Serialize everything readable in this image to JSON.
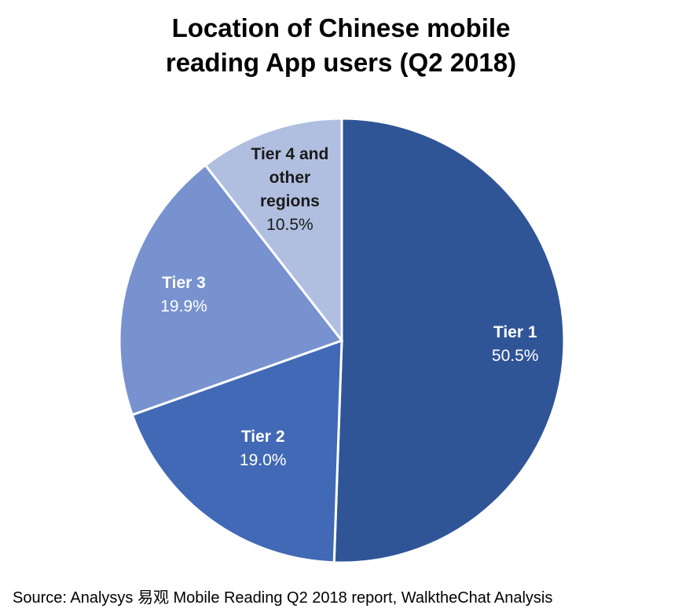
{
  "chart_data": {
    "type": "pie",
    "title_lines": [
      "Location of Chinese mobile",
      "reading App users (Q2 2018)"
    ],
    "slices": [
      {
        "name_lines": [
          "Tier 1"
        ],
        "value": 50.5,
        "value_label": "50.5%",
        "color": "#2f5597",
        "label_color": "#ffffff"
      },
      {
        "name_lines": [
          "Tier 2"
        ],
        "value": 19.0,
        "value_label": "19.0%",
        "color": "#4169b5",
        "label_color": "#ffffff"
      },
      {
        "name_lines": [
          "Tier 3"
        ],
        "value": 19.9,
        "value_label": "19.9%",
        "color": "#7892cf",
        "label_color": "#ffffff"
      },
      {
        "name_lines": [
          "Tier 4 and",
          "other",
          "regions"
        ],
        "value": 10.5,
        "value_label": "10.5%",
        "color": "#b0bfe0",
        "label_color": "#1a1a1a"
      }
    ],
    "start": "top",
    "direction": "clockwise"
  },
  "source": "Source: Analysys 易观 Mobile Reading Q2 2018 report, WalktheChat Analysis"
}
